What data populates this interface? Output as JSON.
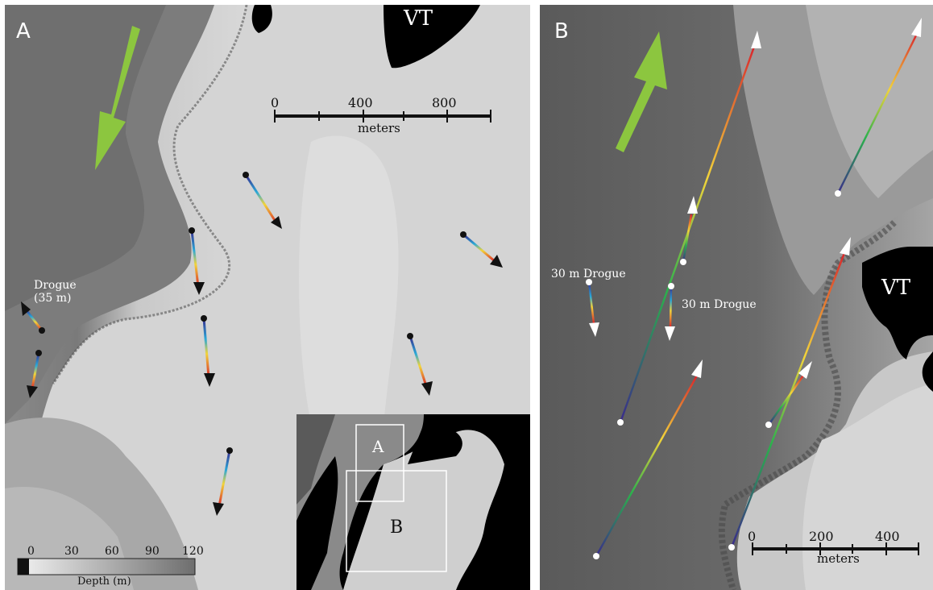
{
  "panel_a": {
    "label": "A",
    "land_label": "VT",
    "drogue_label": "Drogue\n(35 m)",
    "scale_bar": {
      "ticks": [
        "0",
        "400",
        "800"
      ],
      "unit": "meters"
    },
    "depth_legend": {
      "ticks": [
        "0",
        "30",
        "60",
        "90",
        "120"
      ],
      "title": "Depth (m)"
    },
    "inset": {
      "box_a_label": "A",
      "box_b_label": "B"
    }
  },
  "panel_b": {
    "label": "B",
    "land_label": "VT",
    "drogue_labels": [
      "30 m Drogue",
      "30 m Drogue"
    ],
    "scale_bar": {
      "ticks": [
        "0",
        "200",
        "400"
      ],
      "unit": "meters"
    }
  },
  "colors": {
    "current_arrow": "#8cc63f",
    "land": "#000000",
    "track_start": "#3a2a8c",
    "track_mid": "#2bb24c",
    "track_end": "#d9262b"
  }
}
